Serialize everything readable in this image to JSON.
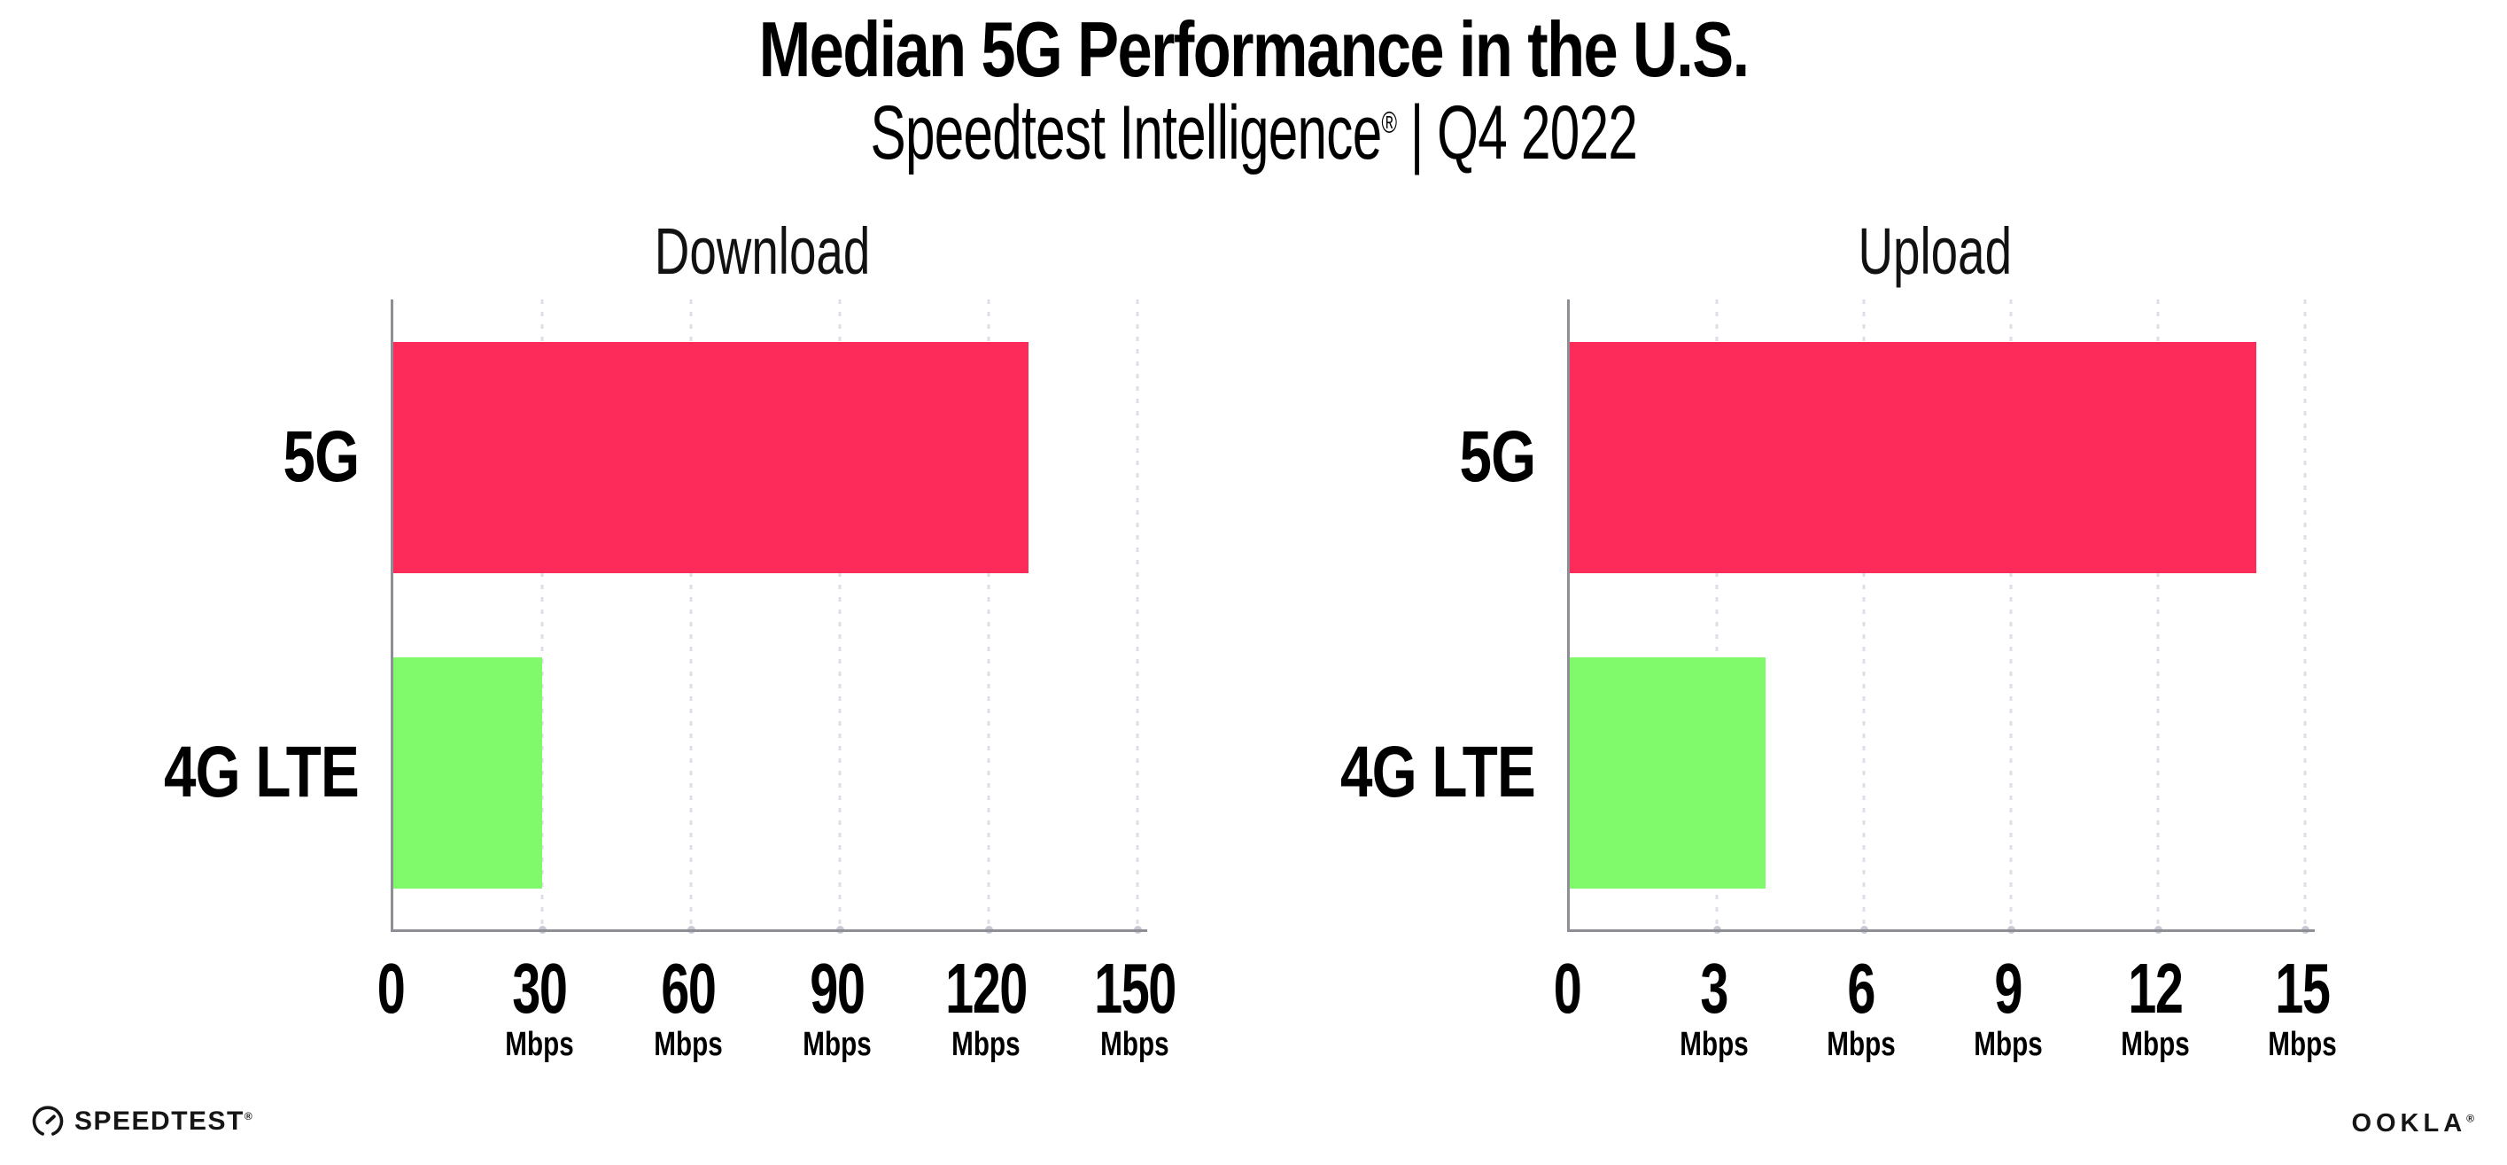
{
  "header": {
    "title": "Median 5G Performance in the U.S.",
    "subtitle_brand": "Speedtest Intelligence",
    "subtitle_reg": "®",
    "subtitle_separator": "|",
    "subtitle_period": "Q4 2022"
  },
  "colors": {
    "bar_5g": "#FC2B5A",
    "bar_4g_lte": "#80FA6B",
    "axis": "#8E8E97",
    "gridline": "#DEDEE9",
    "text": "#000000",
    "background": "#FFFFFF"
  },
  "chart_data": [
    {
      "type": "bar",
      "orientation": "horizontal",
      "title": "Download",
      "categories": [
        "5G",
        "4G LTE"
      ],
      "values": [
        128,
        30
      ],
      "unit": "Mbps",
      "xlim": [
        0,
        150
      ],
      "tick_labels": [
        "0",
        "30",
        "60",
        "90",
        "120",
        "150"
      ],
      "tick_units": [
        "",
        "Mbps",
        "Mbps",
        "Mbps",
        "Mbps",
        "Mbps"
      ],
      "bar_colors": [
        "#FC2B5A",
        "#80FA6B"
      ],
      "grid": "vertical dotted lines at each tick",
      "legend": "none"
    },
    {
      "type": "bar",
      "orientation": "horizontal",
      "title": "Upload",
      "categories": [
        "5G",
        "4G LTE"
      ],
      "values": [
        14,
        4
      ],
      "unit": "Mbps",
      "xlim": [
        0,
        15
      ],
      "tick_labels": [
        "0",
        "3",
        "6",
        "9",
        "12",
        "15"
      ],
      "tick_units": [
        "",
        "Mbps",
        "Mbps",
        "Mbps",
        "Mbps",
        "Mbps"
      ],
      "bar_colors": [
        "#FC2B5A",
        "#80FA6B"
      ],
      "grid": "vertical dotted lines at each tick",
      "legend": "none"
    }
  ],
  "footer": {
    "speedtest_label": "SPEEDTEST",
    "speedtest_reg": "®",
    "ookla_label": "OOKLA",
    "ookla_reg": "®"
  }
}
